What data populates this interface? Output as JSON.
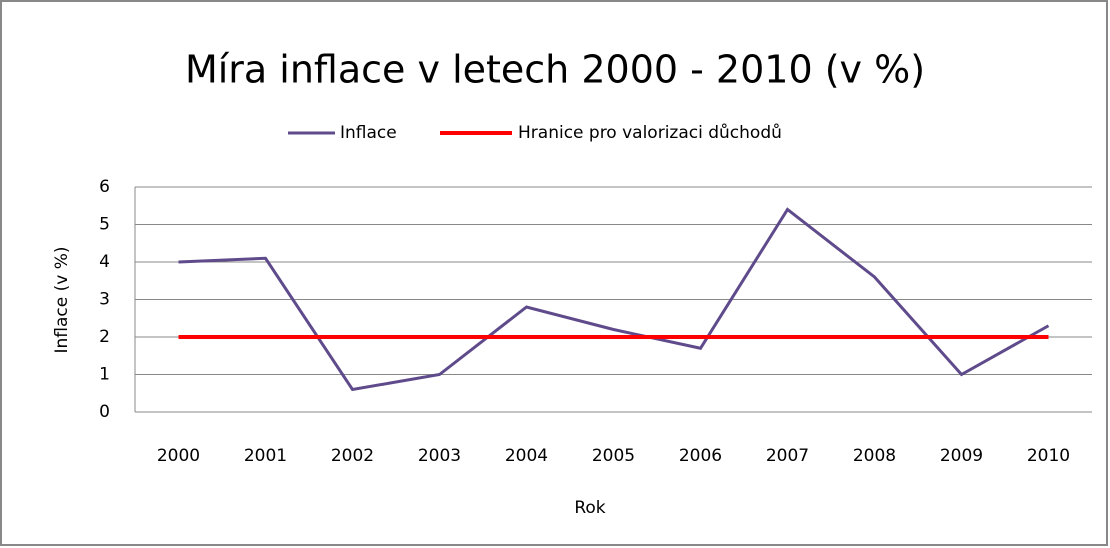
{
  "chart_data": {
    "type": "line",
    "title": "Míra inflace v letech 2000 - 2010 (v %)",
    "x_label": "Rok",
    "y_label": "Inflace (v %)",
    "categories": [
      "2000",
      "2001",
      "2002",
      "2003",
      "2004",
      "2005",
      "2006",
      "2007",
      "2008",
      "2009",
      "2010"
    ],
    "series": [
      {
        "name": "Inflace",
        "color": "#5f4b8b",
        "values": [
          4.0,
          4.1,
          0.6,
          1.0,
          2.8,
          2.2,
          1.7,
          5.4,
          3.6,
          1.0,
          2.3
        ]
      },
      {
        "name": "Hranice pro valorizaci důchodů",
        "color": "#ff0000",
        "values": [
          2,
          2,
          2,
          2,
          2,
          2,
          2,
          2,
          2,
          2,
          2
        ]
      }
    ],
    "ylim": [
      0,
      6
    ],
    "yticks": [
      0,
      1,
      2,
      3,
      4,
      5,
      6
    ],
    "grid": true,
    "legend": "top"
  }
}
